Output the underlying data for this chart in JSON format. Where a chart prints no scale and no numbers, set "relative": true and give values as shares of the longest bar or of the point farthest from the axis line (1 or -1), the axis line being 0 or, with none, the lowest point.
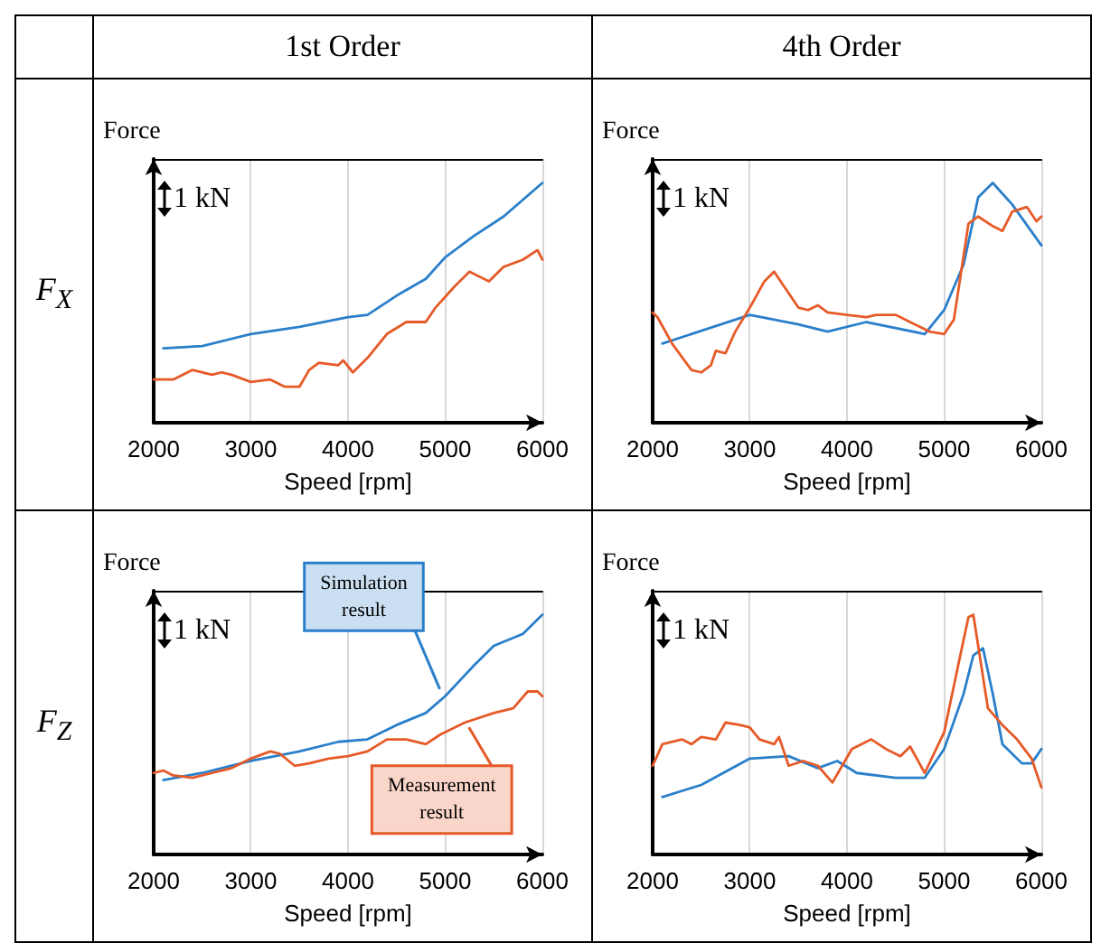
{
  "chart_data": [
    {
      "type": "line",
      "title": "1st Order",
      "subtitle": "F$_{X}$",
      "xlabel": "Speed [rpm]",
      "ylabel": "Force",
      "relative": true,
      "xlim": [
        2000,
        6000
      ],
      "xticks": [
        2000,
        3000,
        4000,
        5000,
        6000
      ],
      "grid": "x",
      "annotations": [
        "1 kN"
      ],
      "series": [
        {
          "color": "#2a7fca",
          "x": [
            2100,
            2500,
            3000,
            3500,
            4000,
            4200,
            4500,
            4800,
            5000,
            5300,
            5600,
            6000
          ],
          "values": [
            0.31,
            0.32,
            0.37,
            0.4,
            0.44,
            0.45,
            0.53,
            0.6,
            0.69,
            0.78,
            0.86,
            1.0
          ]
        },
        {
          "color": "#e65a28",
          "x": [
            2000,
            2200,
            2400,
            2600,
            2700,
            2800,
            3000,
            3200,
            3350,
            3500,
            3600,
            3700,
            3900,
            3950,
            4050,
            4200,
            4400,
            4600,
            4800,
            4900,
            5100,
            5250,
            5450,
            5600,
            5800,
            5950,
            6000
          ],
          "values": [
            0.18,
            0.18,
            0.22,
            0.2,
            0.21,
            0.2,
            0.17,
            0.18,
            0.15,
            0.15,
            0.22,
            0.25,
            0.24,
            0.26,
            0.21,
            0.27,
            0.37,
            0.42,
            0.42,
            0.48,
            0.57,
            0.63,
            0.59,
            0.65,
            0.68,
            0.72,
            0.68
          ]
        }
      ]
    },
    {
      "type": "line",
      "title": "4th Order",
      "xlabel": "Speed [rpm]",
      "ylabel": "Force",
      "relative": true,
      "xlim": [
        2000,
        6000
      ],
      "xticks": [
        2000,
        3000,
        4000,
        5000,
        6000
      ],
      "grid": "x",
      "annotations": [
        "1 kN"
      ],
      "series": [
        {
          "color": "#2a7fca",
          "x": [
            2100,
            3000,
            3500,
            3800,
            4200,
            4800,
            5000,
            5200,
            5350,
            5500,
            5700,
            6000
          ],
          "values": [
            0.33,
            0.45,
            0.41,
            0.38,
            0.42,
            0.37,
            0.47,
            0.66,
            0.94,
            1.0,
            0.91,
            0.74
          ]
        },
        {
          "color": "#e65a28",
          "x": [
            2000,
            2050,
            2200,
            2400,
            2500,
            2600,
            2650,
            2750,
            2850,
            3000,
            3150,
            3250,
            3350,
            3500,
            3600,
            3700,
            3800,
            4000,
            4200,
            4300,
            4500,
            4700,
            4850,
            5000,
            5100,
            5250,
            5350,
            5500,
            5600,
            5700,
            5850,
            5950,
            6000
          ],
          "values": [
            0.46,
            0.44,
            0.33,
            0.22,
            0.21,
            0.24,
            0.3,
            0.29,
            0.38,
            0.48,
            0.59,
            0.63,
            0.57,
            0.48,
            0.47,
            0.49,
            0.46,
            0.45,
            0.44,
            0.45,
            0.45,
            0.41,
            0.38,
            0.37,
            0.43,
            0.83,
            0.86,
            0.82,
            0.8,
            0.88,
            0.9,
            0.84,
            0.86
          ]
        }
      ]
    },
    {
      "type": "line",
      "subtitle": "F$_{Z}$",
      "xlabel": "Speed [rpm]",
      "ylabel": "Force",
      "relative": true,
      "xlim": [
        2000,
        6000
      ],
      "xticks": [
        2000,
        3000,
        4000,
        5000,
        6000
      ],
      "grid": "x",
      "annotations": [
        "1 kN",
        {
          "text": "Simulation result",
          "x": 5000,
          "y": 0.66
        },
        {
          "text": "Measurement result",
          "x": 5300,
          "y": 0.56
        }
      ],
      "series": [
        {
          "color": "#2a7fca",
          "x": [
            2100,
            2500,
            3000,
            3500,
            3900,
            4200,
            4500,
            4800,
            5000,
            5300,
            5500,
            5800,
            6000
          ],
          "values": [
            0.31,
            0.34,
            0.39,
            0.43,
            0.47,
            0.48,
            0.54,
            0.59,
            0.66,
            0.79,
            0.87,
            0.92,
            1.0
          ]
        },
        {
          "color": "#e65a28",
          "x": [
            2000,
            2100,
            2200,
            2400,
            2600,
            2800,
            3000,
            3200,
            3300,
            3450,
            3600,
            3800,
            4000,
            4200,
            4400,
            4600,
            4800,
            4950,
            5200,
            5500,
            5700,
            5850,
            5950,
            6000
          ],
          "values": [
            0.34,
            0.35,
            0.33,
            0.32,
            0.34,
            0.36,
            0.4,
            0.43,
            0.42,
            0.37,
            0.38,
            0.4,
            0.41,
            0.43,
            0.48,
            0.48,
            0.46,
            0.5,
            0.55,
            0.59,
            0.61,
            0.68,
            0.68,
            0.66
          ]
        }
      ]
    },
    {
      "type": "line",
      "xlabel": "Speed [rpm]",
      "ylabel": "Force",
      "relative": true,
      "xlim": [
        2000,
        6000
      ],
      "xticks": [
        2000,
        3000,
        4000,
        5000,
        6000
      ],
      "grid": "x",
      "annotations": [
        "1 kN"
      ],
      "series": [
        {
          "color": "#2a7fca",
          "x": [
            2100,
            2500,
            3000,
            3400,
            3700,
            3900,
            4100,
            4500,
            4800,
            5000,
            5200,
            5300,
            5400,
            5500,
            5600,
            5800,
            5900,
            6000
          ],
          "values": [
            0.24,
            0.29,
            0.4,
            0.41,
            0.36,
            0.39,
            0.34,
            0.32,
            0.32,
            0.44,
            0.67,
            0.83,
            0.86,
            0.67,
            0.46,
            0.38,
            0.38,
            0.44
          ]
        },
        {
          "color": "#e65a28",
          "x": [
            2000,
            2100,
            2300,
            2400,
            2500,
            2650,
            2750,
            2900,
            3000,
            3100,
            3250,
            3300,
            3400,
            3550,
            3700,
            3850,
            4050,
            4250,
            4400,
            4550,
            4650,
            4800,
            5000,
            5150,
            5250,
            5300,
            5450,
            5600,
            5750,
            5900,
            6000
          ],
          "values": [
            0.37,
            0.46,
            0.48,
            0.46,
            0.49,
            0.48,
            0.55,
            0.54,
            0.53,
            0.48,
            0.46,
            0.49,
            0.37,
            0.39,
            0.37,
            0.3,
            0.44,
            0.48,
            0.44,
            0.41,
            0.45,
            0.34,
            0.51,
            0.8,
            0.99,
            1.0,
            0.61,
            0.54,
            0.48,
            0.4,
            0.28
          ]
        }
      ]
    }
  ]
}
